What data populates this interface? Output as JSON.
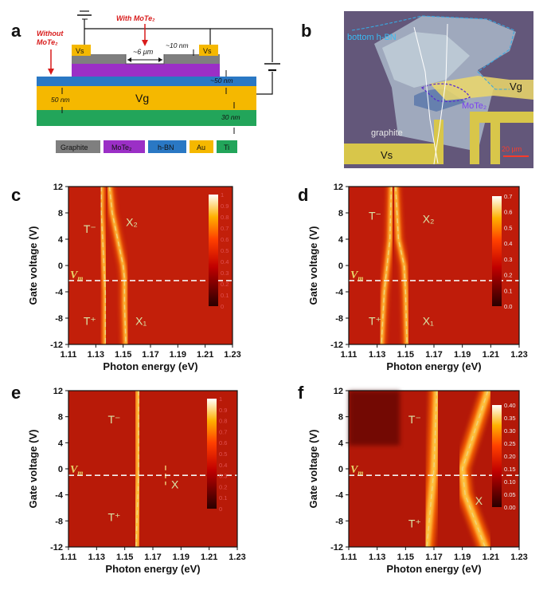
{
  "panel_labels": [
    "a",
    "b",
    "c",
    "d",
    "e",
    "f"
  ],
  "schematic": {
    "without_label": [
      "Without",
      "MoTe₂"
    ],
    "with_label": "With MoTe₂",
    "vs_left": "Vs",
    "vs_right": "Vs",
    "gap": "~6 μm",
    "thick_10": "~10 nm",
    "thick_50": "~50 nm",
    "left_50": "50 nm",
    "vg": "Vg",
    "thick_30": "30 nm",
    "legend": [
      {
        "label": "Graphite",
        "color": "#7f7f7f"
      },
      {
        "label": "MoTe₂",
        "color": "#9b2fc6"
      },
      {
        "label": "h-BN",
        "color": "#2a78c4"
      },
      {
        "label": "Au",
        "color": "#f5b800"
      },
      {
        "label": "Ti",
        "color": "#22a55a"
      }
    ]
  },
  "micrograph": {
    "bottom_hbn": "bottom h-BN",
    "mote2": "MoTe₂",
    "vg": "Vg",
    "graphite": "graphite",
    "vs": "Vs",
    "scale": "20 μm"
  },
  "chart_data": [
    {
      "type": "heatmap",
      "panel": "c",
      "xlabel": "Photon energy (eV)",
      "ylabel": "Gate voltage (V)",
      "xticks": [
        "1.11",
        "1.13",
        "1.15",
        "1.17",
        "1.19",
        "1.21",
        "1.23"
      ],
      "yticks": [
        "12",
        "8",
        "4",
        "0",
        "-4",
        "-8",
        "-12"
      ],
      "xlim": [
        1.11,
        1.23
      ],
      "ylim": [
        -12,
        12
      ],
      "vm": -2.3,
      "colorbar": {
        "ticks": [
          "1",
          "0.9",
          "0.8",
          "0.7",
          "0.6",
          "0.5",
          "0.4",
          "0.3",
          "0.2",
          "0.1",
          "0"
        ],
        "range": [
          0,
          1
        ]
      },
      "labels": [
        {
          "text": "T⁻",
          "x": 1.121,
          "y": 5
        },
        {
          "text": "X₂",
          "x": 1.152,
          "y": 6
        },
        {
          "text": "T⁺",
          "x": 1.121,
          "y": -9
        },
        {
          "text": "X₁",
          "x": 1.159,
          "y": -9
        }
      ],
      "curves": [
        {
          "name": "trion-lines",
          "peaks": [
            [
              12,
              1.134
            ],
            [
              8,
              1.134
            ],
            [
              4,
              1.135
            ],
            [
              0,
              1.136
            ],
            [
              -4,
              1.137
            ],
            [
              -8,
              1.137
            ],
            [
              -12,
              1.137
            ]
          ]
        },
        {
          "name": "exciton",
          "peaks": [
            [
              12,
              1.14
            ],
            [
              8,
              1.142
            ],
            [
              4,
              1.146
            ],
            [
              0,
              1.15
            ],
            [
              -2,
              1.151
            ],
            [
              -6,
              1.151
            ],
            [
              -12,
              1.152
            ]
          ]
        }
      ]
    },
    {
      "type": "heatmap",
      "panel": "d",
      "xlabel": "Photon energy (eV)",
      "ylabel": "Gate voltage (V)",
      "xticks": [
        "1.11",
        "1.13",
        "1.15",
        "1.17",
        "1.19",
        "1.21",
        "1.23"
      ],
      "yticks": [
        "12",
        "8",
        "4",
        "0",
        "-4",
        "-8",
        "-12"
      ],
      "xlim": [
        1.11,
        1.23
      ],
      "ylim": [
        -12,
        12
      ],
      "vm": -2.3,
      "colorbar": {
        "ticks": [
          "0.7",
          "0.6",
          "0.5",
          "0.4",
          "0.3",
          "0.2",
          "0.1",
          "0.0"
        ],
        "range": [
          0,
          0.7
        ]
      },
      "labels": [
        {
          "text": "T⁻",
          "x": 1.124,
          "y": 7
        },
        {
          "text": "X₂",
          "x": 1.162,
          "y": 6.5
        },
        {
          "text": "T⁺",
          "x": 1.124,
          "y": -9
        },
        {
          "text": "X₁",
          "x": 1.162,
          "y": -9
        }
      ],
      "curves": [
        {
          "name": "trion",
          "peaks": [
            [
              12,
              1.14
            ],
            [
              4,
              1.139
            ],
            [
              0,
              1.137
            ],
            [
              -4,
              1.135
            ],
            [
              -12,
              1.133
            ]
          ]
        },
        {
          "name": "exciton",
          "peaks": [
            [
              12,
              1.143
            ],
            [
              4,
              1.145
            ],
            [
              0,
              1.149
            ],
            [
              -4,
              1.15
            ],
            [
              -12,
              1.151
            ]
          ]
        }
      ]
    },
    {
      "type": "heatmap",
      "panel": "e",
      "xlabel": "Photon energy (eV)",
      "ylabel": "Gate voltage (V)",
      "xticks": [
        "1.11",
        "1.13",
        "1.15",
        "1.17",
        "1.19",
        "1.21",
        "1.23"
      ],
      "yticks": [
        "12",
        "8",
        "4",
        "0",
        "-4",
        "-8",
        "-12"
      ],
      "xlim": [
        1.11,
        1.23
      ],
      "ylim": [
        -12,
        12
      ],
      "vm": -1.0,
      "colorbar": {
        "ticks": [
          "1",
          "0.9",
          "0.8",
          "0.7",
          "0.6",
          "0.5",
          "0.4",
          "0.3",
          "0.2",
          "0.1",
          "0"
        ],
        "range": [
          0,
          1
        ]
      },
      "labels": [
        {
          "text": "T⁻",
          "x": 1.138,
          "y": 7
        },
        {
          "text": "X",
          "x": 1.183,
          "y": -3
        },
        {
          "text": "T⁺",
          "x": 1.138,
          "y": -8
        }
      ],
      "curves": [
        {
          "name": "trion",
          "peaks": [
            [
              12,
              1.16
            ],
            [
              0,
              1.16
            ],
            [
              -12,
              1.158
            ]
          ]
        },
        {
          "name": "exciton",
          "peaks": [
            [
              0.5,
              1.179
            ],
            [
              -2.5,
              1.179
            ]
          ]
        }
      ]
    },
    {
      "type": "heatmap",
      "panel": "f",
      "xlabel": "Photon energy (eV)",
      "ylabel": "Gate voltage (V)",
      "xticks": [
        "1.11",
        "1.13",
        "1.15",
        "1.17",
        "1.19",
        "1.21",
        "1.23"
      ],
      "yticks": [
        "12",
        "8",
        "4",
        "0",
        "-4",
        "-8",
        "-12"
      ],
      "xlim": [
        1.11,
        1.23
      ],
      "ylim": [
        -12,
        12
      ],
      "vm": -1.0,
      "colorbar": {
        "ticks": [
          "0.40",
          "0.35",
          "0.30",
          "0.25",
          "0.20",
          "0.15",
          "0.10",
          "0.05",
          "0.00"
        ],
        "range": [
          0,
          0.4
        ]
      },
      "labels": [
        {
          "text": "T⁻",
          "x": 1.152,
          "y": 7
        },
        {
          "text": "X",
          "x": 1.199,
          "y": -5.5
        },
        {
          "text": "T⁺",
          "x": 1.152,
          "y": -9
        }
      ],
      "curves": [
        {
          "name": "trion",
          "peaks": [
            [
              12,
              1.172
            ],
            [
              0,
              1.17
            ],
            [
              -12,
              1.165
            ]
          ]
        },
        {
          "name": "exciton",
          "peaks": [
            [
              12,
              1.208
            ],
            [
              0,
              1.19
            ],
            [
              -4,
              1.192
            ],
            [
              -12,
              1.206
            ]
          ]
        }
      ]
    }
  ]
}
